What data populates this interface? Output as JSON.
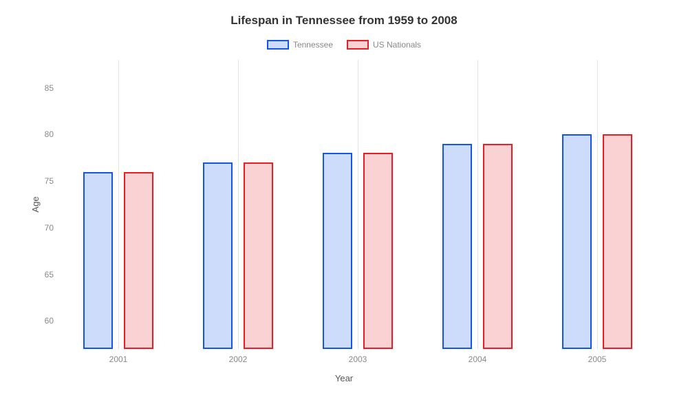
{
  "chart": {
    "type": "bar",
    "title": "Lifespan in Tennessee from 1959 to 2008",
    "title_fontsize": 17,
    "xlabel": "Year",
    "ylabel": "Age",
    "label_fontsize": 13,
    "tick_fontsize": 12,
    "legend_fontsize": 12,
    "background_color": "#ffffff",
    "grid_color": "#e3e3e3",
    "categories": [
      "2001",
      "2002",
      "2003",
      "2004",
      "2005"
    ],
    "series": [
      {
        "name": "Tennessee",
        "values": [
          76,
          77,
          78,
          79,
          80
        ],
        "border_color": "#1155ed",
        "fill_color": "#cddcfb"
      },
      {
        "name": "US Nationals",
        "values": [
          76,
          77,
          78,
          79,
          80
        ],
        "border_color": "#ed1b24",
        "fill_color": "#fbd2d4"
      }
    ],
    "ylim": [
      57,
      88
    ],
    "yticks": [
      60,
      65,
      70,
      75,
      80,
      85
    ],
    "bar_width_pct": 5.0,
    "bar_gap_pct": 1.8,
    "group_positions_pct": [
      10,
      30,
      50,
      70,
      90
    ]
  }
}
